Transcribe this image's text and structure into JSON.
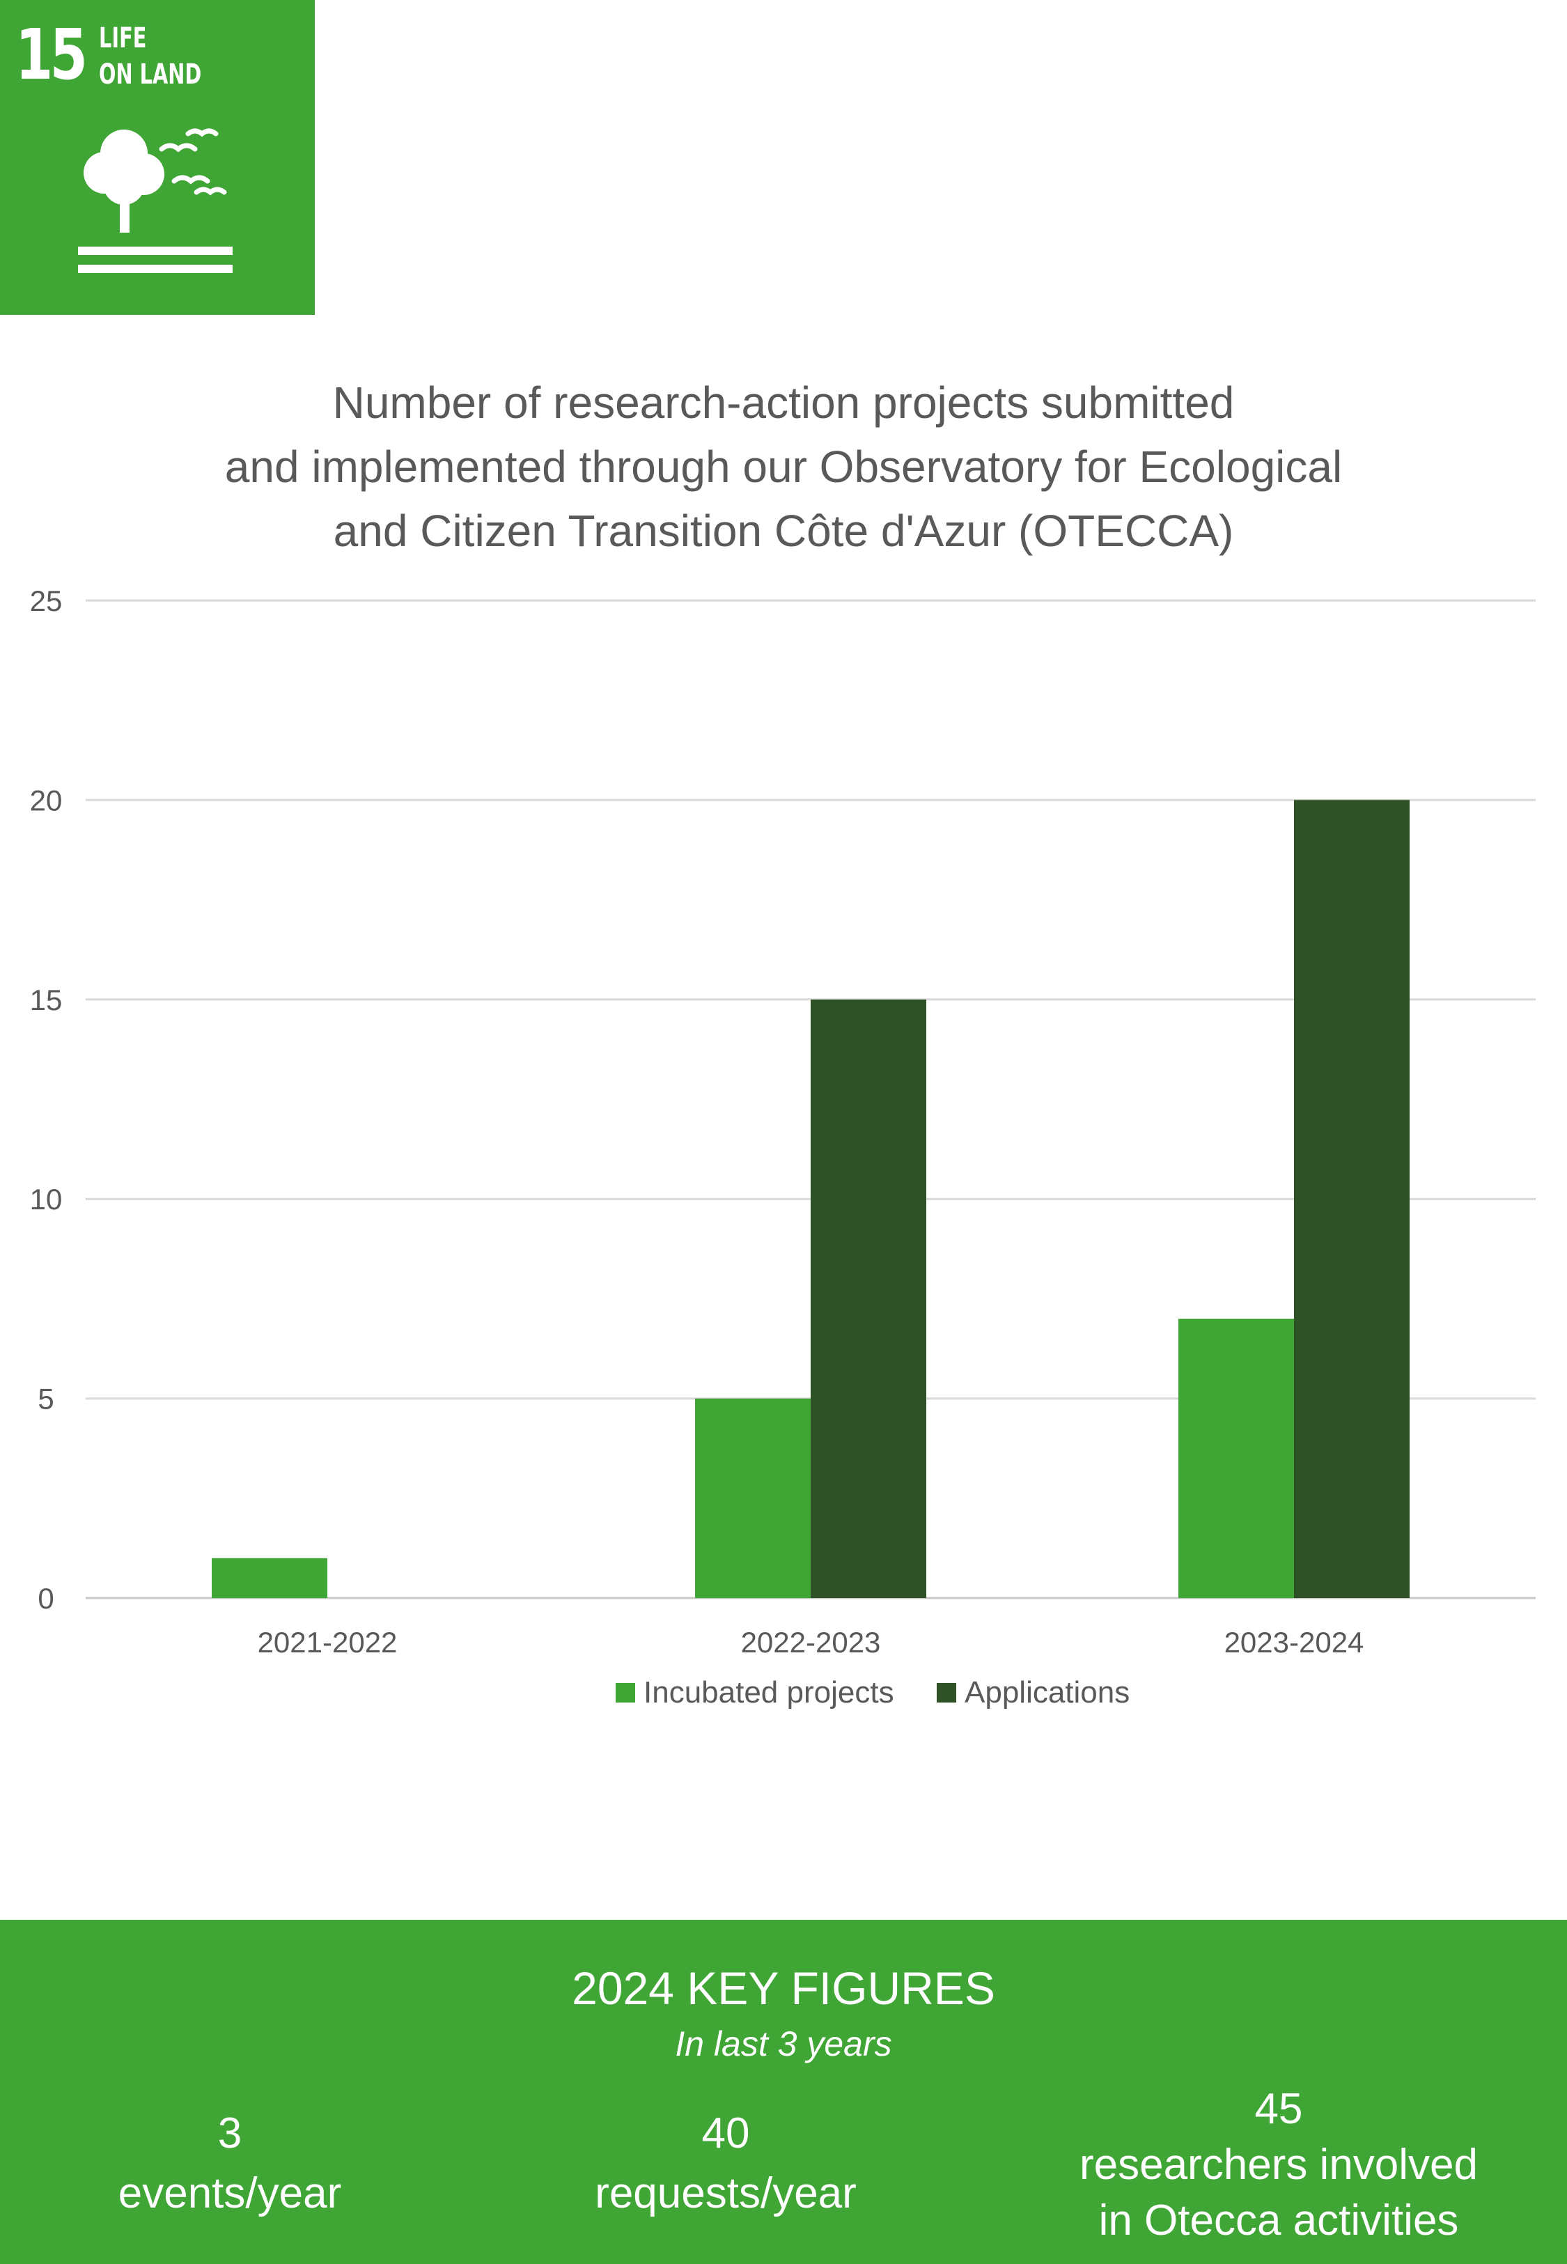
{
  "sdg_badge": {
    "number": "15",
    "line1": "LIFE",
    "line2": "ON LAND",
    "icon": "tree-and-birds-icon",
    "color": "#3fa535"
  },
  "chart_data": {
    "type": "bar",
    "title_lines": [
      "Number of research-action projects submitted",
      "and implemented through our Observatory for Ecological",
      "and Citizen Transition Côte d'Azur (OTECCA)"
    ],
    "categories": [
      "2021-2022",
      "2022-2023",
      "2023-2024"
    ],
    "series": [
      {
        "name": "Incubated projects",
        "values": [
          1,
          5,
          7
        ],
        "color": "#3fa535"
      },
      {
        "name": "Applications",
        "values": [
          0,
          15,
          20
        ],
        "color": "#2f5126"
      }
    ],
    "ylim": [
      0,
      25
    ],
    "yticks": [
      "0",
      "5",
      "10",
      "15",
      "20",
      "25"
    ],
    "grid": true,
    "legend": "bottom",
    "xlabel": "",
    "ylabel": ""
  },
  "key_figures": {
    "title": "2024 KEY FIGURES",
    "subtitle": "In last 3 years",
    "items": [
      {
        "value": "3",
        "label": "events/year"
      },
      {
        "value": "40",
        "label": "requests/year"
      },
      {
        "value": "45",
        "label_line1": "researchers involved",
        "label_line2": "in Otecca activities"
      }
    ]
  }
}
